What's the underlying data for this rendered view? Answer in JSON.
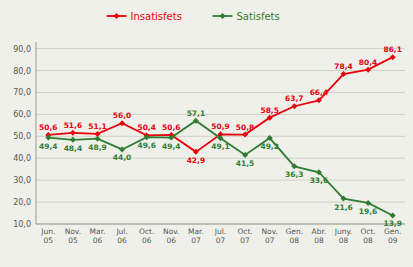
{
  "chart_data": {
    "type": "line",
    "categories": [
      "Jun.\n05",
      "Nov.\n05",
      "Mar.\n06",
      "Jul.\n06",
      "Oct.\n06",
      "Nov.\n06",
      "Mar.\n07",
      "Jul.\n07",
      "Oct.\n07",
      "Nov.\n07",
      "Gen.\n08",
      "Abr.\n08",
      "Juny.\n08",
      "Oct.\n08",
      "Gen.\n09"
    ],
    "series": [
      {
        "name": "Insatisfets",
        "color": "#e8000d",
        "marker": "diamond",
        "values": [
          50.6,
          51.6,
          51.1,
          56.0,
          50.4,
          50.6,
          42.9,
          50.9,
          50.8,
          58.5,
          63.7,
          66.4,
          78.4,
          80.4,
          86.1
        ],
        "value_labels": [
          "50,6",
          "51,6",
          "51,1",
          "56,0",
          "50,4",
          "50,6",
          "42,9",
          "50,9",
          "50,8",
          "58,5",
          "63,7",
          "66,4",
          "78,4",
          "80,4",
          "86,1"
        ]
      },
      {
        "name": "Satisfets",
        "color": "#2e7d32",
        "marker": "diamond",
        "values": [
          49.4,
          48.4,
          48.9,
          44.0,
          49.6,
          49.4,
          57.1,
          49.1,
          41.5,
          49.2,
          36.3,
          33.6,
          21.6,
          19.6,
          13.9
        ],
        "value_labels": [
          "49,4",
          "48,4",
          "48,9",
          "44,0",
          "49,6",
          "49,4",
          "57,1",
          "49,1",
          "41,5",
          "49,2",
          "36,3",
          "33,6",
          "21,6",
          "19,6",
          "13,9"
        ]
      }
    ],
    "ylim": [
      10.0,
      93.0
    ],
    "yticks": [
      {
        "value": 10.0,
        "label": "10,0"
      },
      {
        "value": 20.0,
        "label": "20,0"
      },
      {
        "value": 30.0,
        "label": "30,0"
      },
      {
        "value": 40.0,
        "label": "40,0"
      },
      {
        "value": 50.0,
        "label": "50,0"
      },
      {
        "value": 60.0,
        "label": "60,0"
      },
      {
        "value": 70.0,
        "label": "70,0"
      },
      {
        "value": 80.0,
        "label": "80,0"
      },
      {
        "value": 90.0,
        "label": "90,0"
      }
    ],
    "grid": true,
    "legend": "top",
    "data_labels": true
  }
}
